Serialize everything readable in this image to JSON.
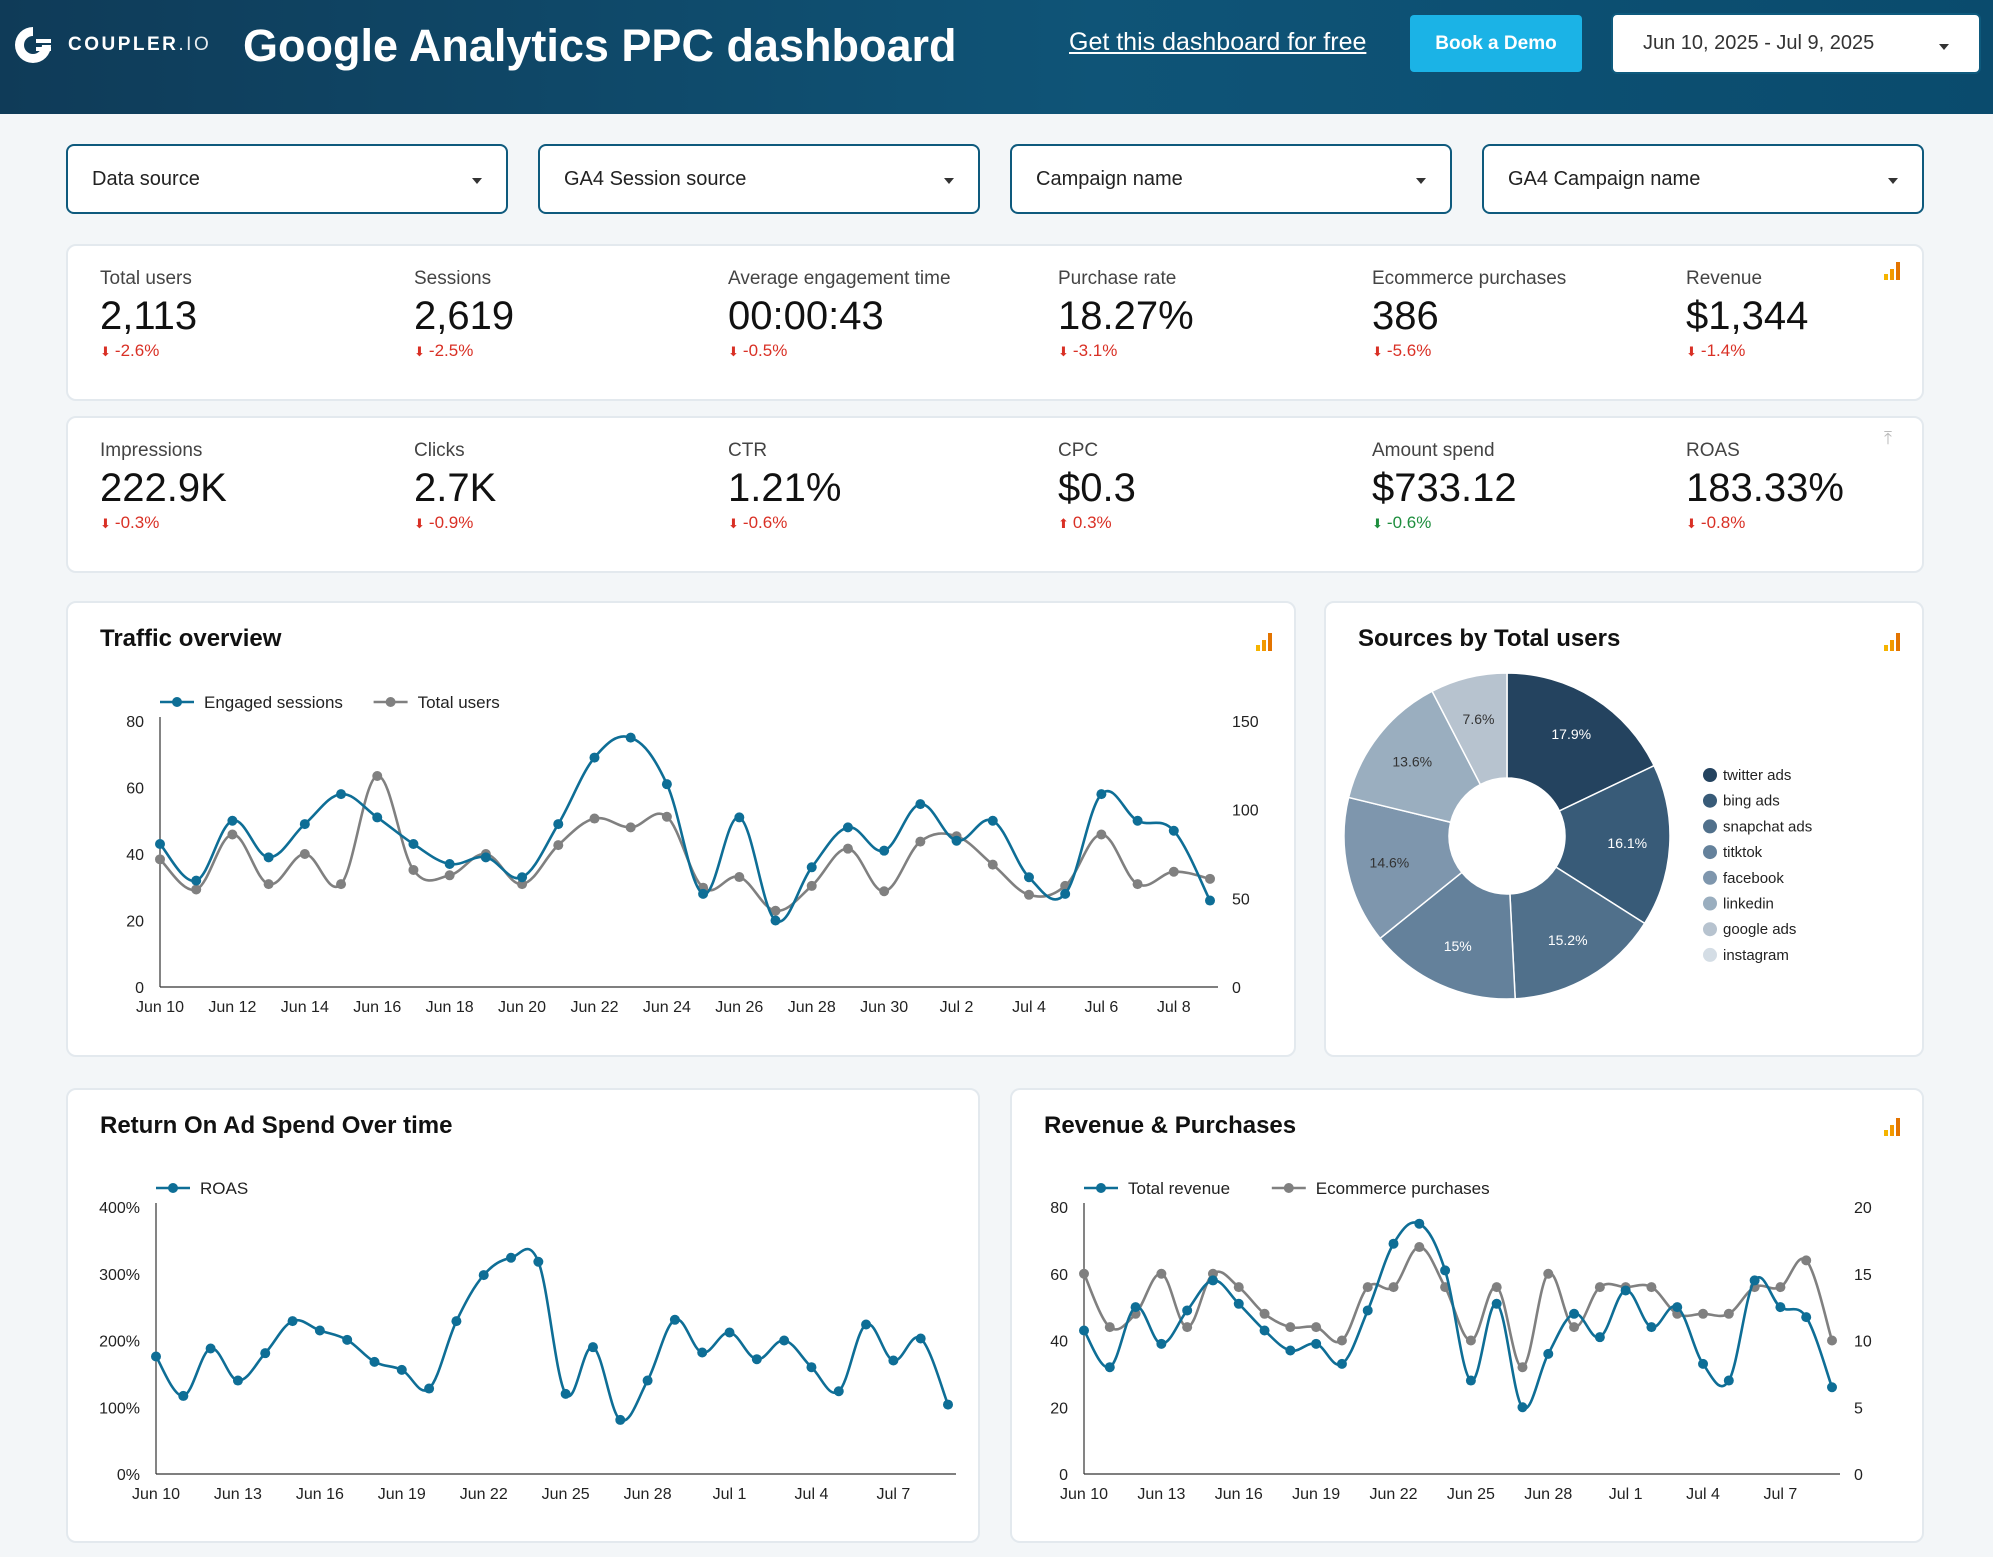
{
  "header": {
    "logo_text": "COUPLER",
    "logo_suffix": ".IO",
    "title": "Google Analytics PPC dashboard",
    "free_link": "Get this dashboard for free",
    "demo_button": "Book a Demo",
    "date_range": "Jun 10, 2025 - Jul 9, 2025"
  },
  "filters": [
    "Data source",
    "GA4 Session source",
    "Campaign name",
    "GA4 Campaign name"
  ],
  "kpi_row1": [
    {
      "label": "Total users",
      "value": "2,113",
      "delta": "-2.6%",
      "dir": "down",
      "tone": "neg"
    },
    {
      "label": "Sessions",
      "value": "2,619",
      "delta": "-2.5%",
      "dir": "down",
      "tone": "neg"
    },
    {
      "label": "Average engagement time",
      "value": "00:00:43",
      "delta": "-0.5%",
      "dir": "down",
      "tone": "neg"
    },
    {
      "label": "Purchase rate",
      "value": "18.27%",
      "delta": "-3.1%",
      "dir": "down",
      "tone": "neg"
    },
    {
      "label": "Ecommerce purchases",
      "value": "386",
      "delta": "-5.6%",
      "dir": "down",
      "tone": "neg"
    },
    {
      "label": "Revenue",
      "value": "$1,344",
      "delta": "-1.4%",
      "dir": "down",
      "tone": "neg"
    }
  ],
  "kpi_row2": [
    {
      "label": "Impressions",
      "value": "222.9K",
      "delta": "-0.3%",
      "dir": "down",
      "tone": "neg"
    },
    {
      "label": "Clicks",
      "value": "2.7K",
      "delta": "-0.9%",
      "dir": "down",
      "tone": "neg"
    },
    {
      "label": "CTR",
      "value": "1.21%",
      "delta": "-0.6%",
      "dir": "down",
      "tone": "neg"
    },
    {
      "label": "CPC",
      "value": "$0.3",
      "delta": "0.3%",
      "dir": "up",
      "tone": "neg"
    },
    {
      "label": "Amount spend",
      "value": "$733.12",
      "delta": "-0.6%",
      "dir": "down",
      "tone": "pos"
    },
    {
      "label": "ROAS",
      "value": "183.33%",
      "delta": "-0.8%",
      "dir": "down",
      "tone": "neg"
    }
  ],
  "cards": {
    "traffic_title": "Traffic overview",
    "sources_title": "Sources by Total users",
    "roas_title": "Return On Ad Spend Over time",
    "revenue_title": "Revenue & Purchases"
  },
  "colors": {
    "blue": "#0e6e96",
    "gray": "#808080",
    "accent": "#1bb3e6",
    "negative": "#d93025",
    "positive": "#1e8e3e"
  },
  "chart_data": [
    {
      "id": "traffic",
      "type": "line",
      "x": [
        "Jun 10",
        "Jun 11",
        "Jun 12",
        "Jun 13",
        "Jun 14",
        "Jun 15",
        "Jun 16",
        "Jun 17",
        "Jun 18",
        "Jun 19",
        "Jun 20",
        "Jun 21",
        "Jun 22",
        "Jun 23",
        "Jun 24",
        "Jun 25",
        "Jun 26",
        "Jun 27",
        "Jun 28",
        "Jun 29",
        "Jun 30",
        "Jul 1",
        "Jul 2",
        "Jul 3",
        "Jul 4",
        "Jul 5",
        "Jul 6",
        "Jul 7",
        "Jul 8",
        "Jul 9"
      ],
      "xticks": [
        "Jun 10",
        "Jun 12",
        "Jun 14",
        "Jun 16",
        "Jun 18",
        "Jun 20",
        "Jun 22",
        "Jun 24",
        "Jun 26",
        "Jun 28",
        "Jun 30",
        "Jul 2",
        "Jul 4",
        "Jul 6",
        "Jul 8"
      ],
      "series": [
        {
          "name": "Engaged sessions",
          "axis": "left",
          "color": "#0e6e96",
          "values": [
            43,
            32,
            50,
            39,
            49,
            58,
            51,
            43,
            37,
            39,
            33,
            49,
            69,
            75,
            61,
            28,
            51,
            20,
            36,
            48,
            41,
            55,
            44,
            50,
            33,
            28,
            58,
            50,
            47,
            26
          ]
        },
        {
          "name": "Total users",
          "axis": "right",
          "color": "#808080",
          "values": [
            72,
            55,
            86,
            58,
            75,
            58,
            119,
            66,
            63,
            75,
            58,
            80,
            95,
            90,
            96,
            56,
            62,
            43,
            57,
            78,
            54,
            82,
            85,
            69,
            52,
            57,
            86,
            58,
            65,
            61
          ]
        }
      ],
      "ylim_left": [
        0,
        80
      ],
      "yticks_left": [
        0,
        20,
        40,
        60,
        80
      ],
      "ylim_right": [
        0,
        150
      ],
      "yticks_right": [
        0,
        50,
        100,
        150
      ],
      "legend": "top-left"
    },
    {
      "id": "sources",
      "type": "pie",
      "donut": true,
      "labels": [
        "twitter ads",
        "bing ads",
        "snapchat ads",
        "titktok",
        "facebook",
        "linkedin",
        "google ads",
        "instagram"
      ],
      "values": [
        17.9,
        16.1,
        15.2,
        15,
        14.6,
        13.6,
        7.6,
        0
      ],
      "value_labels": [
        "17.9%",
        "16.1%",
        "15.2%",
        "15%",
        "14.6%",
        "13.6%",
        "7.6%",
        ""
      ],
      "colors": [
        "#24435f",
        "#385b78",
        "#50708b",
        "#64819b",
        "#7e96ad",
        "#9aaebf",
        "#b7c3cf",
        "#d4dde5"
      ],
      "legend": "right"
    },
    {
      "id": "roas",
      "type": "line",
      "x": [
        "Jun 10",
        "Jun 11",
        "Jun 12",
        "Jun 13",
        "Jun 14",
        "Jun 15",
        "Jun 16",
        "Jun 17",
        "Jun 18",
        "Jun 19",
        "Jun 20",
        "Jun 21",
        "Jun 22",
        "Jun 23",
        "Jun 24",
        "Jun 25",
        "Jun 26",
        "Jun 27",
        "Jun 28",
        "Jun 29",
        "Jun 30",
        "Jul 1",
        "Jul 2",
        "Jul 3",
        "Jul 4",
        "Jul 5",
        "Jul 6",
        "Jul 7",
        "Jul 8",
        "Jul 9"
      ],
      "xticks": [
        "Jun 10",
        "Jun 13",
        "Jun 16",
        "Jun 19",
        "Jun 22",
        "Jun 25",
        "Jun 28",
        "Jul 1",
        "Jul 4",
        "Jul 7"
      ],
      "series": [
        {
          "name": "ROAS",
          "axis": "left",
          "color": "#0e6e96",
          "values": [
            176,
            117,
            188,
            140,
            181,
            229,
            215,
            201,
            168,
            156,
            128,
            229,
            298,
            324,
            318,
            120,
            190,
            81,
            140,
            231,
            182,
            212,
            172,
            200,
            160,
            124,
            224,
            170,
            203,
            104
          ]
        }
      ],
      "ylim_left": [
        0,
        400
      ],
      "yticks_left": [
        0,
        100,
        200,
        300,
        400
      ],
      "ytick_labels": [
        "0%",
        "100%",
        "200%",
        "300%",
        "400%"
      ],
      "legend": "top-left"
    },
    {
      "id": "revenue",
      "type": "line",
      "x": [
        "Jun 10",
        "Jun 11",
        "Jun 12",
        "Jun 13",
        "Jun 14",
        "Jun 15",
        "Jun 16",
        "Jun 17",
        "Jun 18",
        "Jun 19",
        "Jun 20",
        "Jun 21",
        "Jun 22",
        "Jun 23",
        "Jun 24",
        "Jun 25",
        "Jun 26",
        "Jun 27",
        "Jun 28",
        "Jun 29",
        "Jun 30",
        "Jul 1",
        "Jul 2",
        "Jul 3",
        "Jul 4",
        "Jul 5",
        "Jul 6",
        "Jul 7",
        "Jul 8",
        "Jul 9"
      ],
      "xticks": [
        "Jun 10",
        "Jun 13",
        "Jun 16",
        "Jun 19",
        "Jun 22",
        "Jun 25",
        "Jun 28",
        "Jul 1",
        "Jul 4",
        "Jul 7"
      ],
      "series": [
        {
          "name": "Total revenue",
          "axis": "left",
          "color": "#0e6e96",
          "values": [
            43,
            32,
            50,
            39,
            49,
            58,
            51,
            43,
            37,
            39,
            33,
            49,
            69,
            75,
            61,
            28,
            51,
            20,
            36,
            48,
            41,
            55,
            44,
            50,
            33,
            28,
            58,
            50,
            47,
            26
          ]
        },
        {
          "name": "Ecommerce purchases",
          "axis": "right",
          "color": "#808080",
          "values": [
            15,
            11,
            12,
            15,
            11,
            15,
            14,
            12,
            11,
            11,
            10,
            14,
            14,
            17,
            14,
            10,
            14,
            8,
            15,
            11,
            14,
            14,
            14,
            12,
            12,
            12,
            14,
            14,
            16,
            10
          ]
        }
      ],
      "ylim_left": [
        0,
        80
      ],
      "yticks_left": [
        0,
        20,
        40,
        60,
        80
      ],
      "ylim_right": [
        0,
        20
      ],
      "yticks_right": [
        0,
        5,
        10,
        15,
        20
      ],
      "legend": "top-left"
    }
  ]
}
